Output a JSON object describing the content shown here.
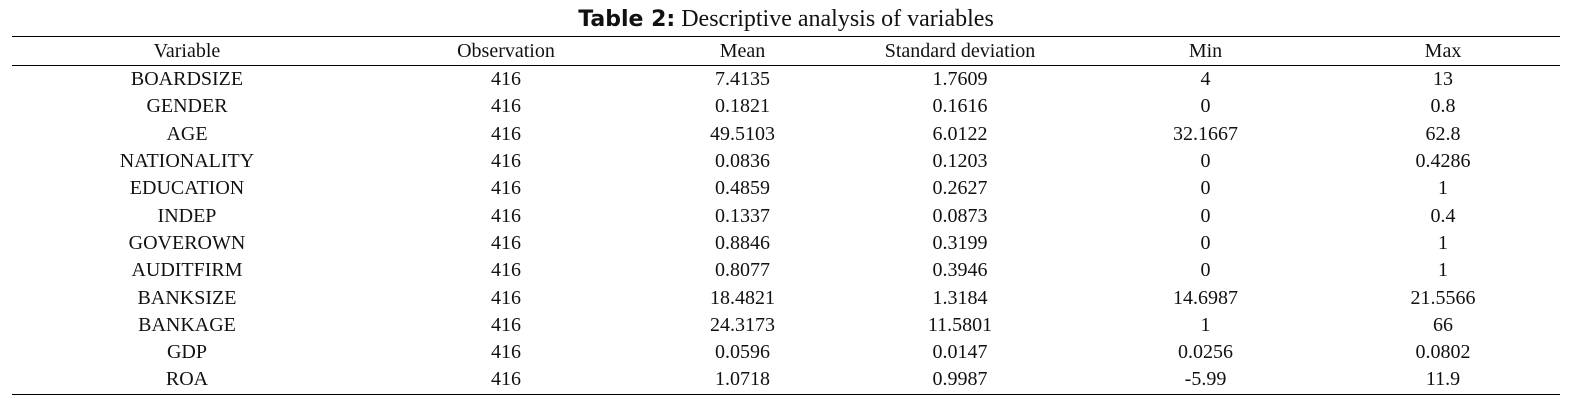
{
  "caption": {
    "label": "Table 2:",
    "text": "Descriptive analysis of variables"
  },
  "table": {
    "headers": [
      "Variable",
      "Observation",
      "Mean",
      "Standard deviation",
      "Min",
      "Max"
    ],
    "rows": [
      [
        "BOARDSIZE",
        "416",
        "7.4135",
        "1.7609",
        "4",
        "13"
      ],
      [
        "GENDER",
        "416",
        "0.1821",
        "0.1616",
        "0",
        "0.8"
      ],
      [
        "AGE",
        "416",
        "49.5103",
        "6.0122",
        "32.1667",
        "62.8"
      ],
      [
        "NATIONALITY",
        "416",
        "0.0836",
        "0.1203",
        "0",
        "0.4286"
      ],
      [
        "EDUCATION",
        "416",
        "0.4859",
        "0.2627",
        "0",
        "1"
      ],
      [
        "INDEP",
        "416",
        "0.1337",
        "0.0873",
        "0",
        "0.4"
      ],
      [
        "GOVEROWN",
        "416",
        "0.8846",
        "0.3199",
        "0",
        "1"
      ],
      [
        "AUDITFIRM",
        "416",
        "0.8077",
        "0.3946",
        "0",
        "1"
      ],
      [
        "BANKSIZE",
        "416",
        "18.4821",
        "1.3184",
        "14.6987",
        "21.5566"
      ],
      [
        "BANKAGE",
        "416",
        "24.3173",
        "11.5801",
        "1",
        "66"
      ],
      [
        "GDP",
        "416",
        "0.0596",
        "0.0147",
        "0.0256",
        "0.0802"
      ],
      [
        "ROA",
        "416",
        "1.0718",
        "0.9987",
        "-5.99",
        "11.9"
      ]
    ]
  }
}
